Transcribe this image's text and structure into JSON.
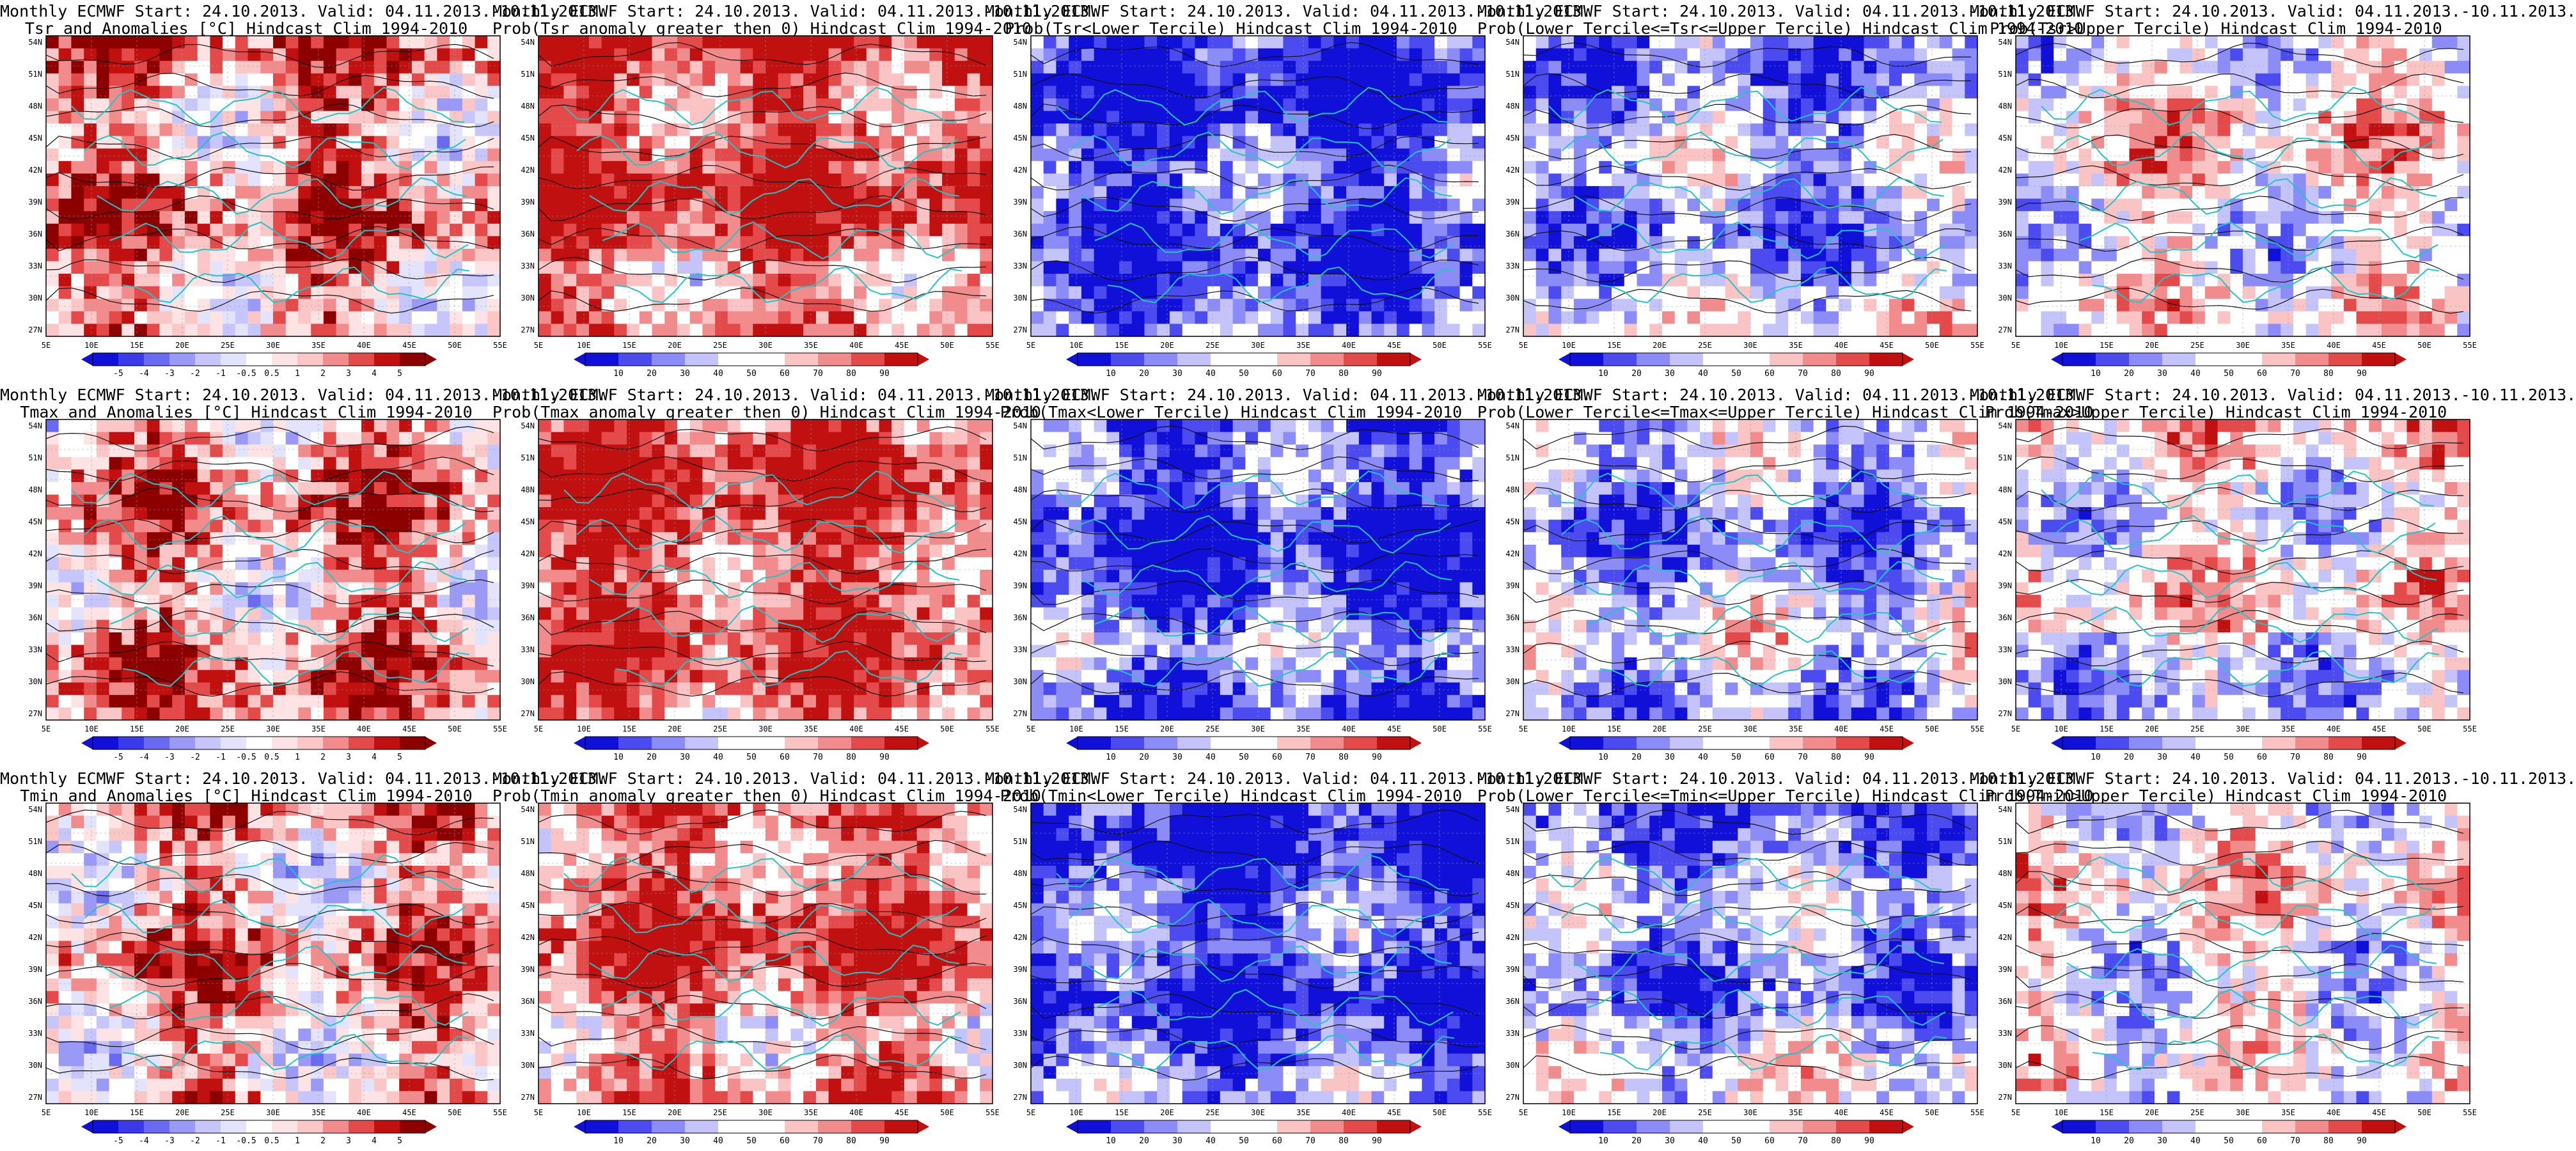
{
  "chart_data": [
    {
      "type": "heatmap",
      "title": "Monthly ECMWF Start: 24.10.2013. Valid: 04.11.2013.-10.11.2013.",
      "subtitle": "Tsr and Anomalies [°C] Hindcast Clim 1994-2010",
      "scheme": "anom",
      "tone": 0.45,
      "xticks": [
        "5E",
        "10E",
        "15E",
        "20E",
        "25E",
        "30E",
        "35E",
        "40E",
        "45E",
        "50E",
        "55E"
      ],
      "yticks": [
        "54N",
        "51N",
        "48N",
        "45N",
        "42N",
        "39N",
        "36N",
        "33N",
        "30N",
        "27N"
      ],
      "colorbar": [
        "-5",
        "-4",
        "-3",
        "-2",
        "-1",
        "-0.5",
        "0.5",
        "1",
        "2",
        "3",
        "4",
        "5"
      ]
    },
    {
      "type": "heatmap",
      "title": "Monthly ECMWF Start: 24.10.2013. Valid: 04.11.2013.-10.11.2013.",
      "subtitle": "Prob(Tsr anomaly greater then 0) Hindcast Clim 1994-2010",
      "scheme": "prob",
      "tone": 0.8,
      "xticks": [
        "5E",
        "10E",
        "15E",
        "20E",
        "25E",
        "30E",
        "35E",
        "40E",
        "45E",
        "50E",
        "55E"
      ],
      "yticks": [
        "54N",
        "51N",
        "48N",
        "45N",
        "42N",
        "39N",
        "36N",
        "33N",
        "30N",
        "27N"
      ],
      "colorbar": [
        "10",
        "20",
        "30",
        "40",
        "50",
        "60",
        "70",
        "80",
        "90"
      ]
    },
    {
      "type": "heatmap",
      "title": "Monthly ECMWF Start: 24.10.2013. Valid: 04.11.2013.-10.11.2013.",
      "subtitle": "Prob(Tsr<Lower Tercile) Hindcast Clim 1994-2010",
      "scheme": "prob",
      "tone": -0.85,
      "xticks": [
        "5E",
        "10E",
        "15E",
        "20E",
        "25E",
        "30E",
        "35E",
        "40E",
        "45E",
        "50E",
        "55E"
      ],
      "yticks": [
        "54N",
        "51N",
        "48N",
        "45N",
        "42N",
        "39N",
        "36N",
        "33N",
        "30N",
        "27N"
      ],
      "colorbar": [
        "10",
        "20",
        "30",
        "40",
        "50",
        "60",
        "70",
        "80",
        "90"
      ]
    },
    {
      "type": "heatmap",
      "title": "Monthly ECMWF Start: 24.10.2013. Valid: 04.11.2013.-10.11.2013.",
      "subtitle": "Prob(Lower Tercile<=Tsr<=Upper Tercile) Hindcast Clim 1994-2010",
      "scheme": "prob",
      "tone": -0.4,
      "xticks": [
        "5E",
        "10E",
        "15E",
        "20E",
        "25E",
        "30E",
        "35E",
        "40E",
        "45E",
        "50E",
        "55E"
      ],
      "yticks": [
        "54N",
        "51N",
        "48N",
        "45N",
        "42N",
        "39N",
        "36N",
        "33N",
        "30N",
        "27N"
      ],
      "colorbar": [
        "10",
        "20",
        "30",
        "40",
        "50",
        "60",
        "70",
        "80",
        "90"
      ]
    },
    {
      "type": "heatmap",
      "title": "Monthly ECMWF Start: 24.10.2013. Valid: 04.11.2013.-10.11.2013.",
      "subtitle": "Prob(Tsr>Upper Tercile) Hindcast Clim 1994-2010",
      "scheme": "prob",
      "tone": 0.1,
      "xticks": [
        "5E",
        "10E",
        "15E",
        "20E",
        "25E",
        "30E",
        "35E",
        "40E",
        "45E",
        "50E",
        "55E"
      ],
      "yticks": [
        "54N",
        "51N",
        "48N",
        "45N",
        "42N",
        "39N",
        "36N",
        "33N",
        "30N",
        "27N"
      ],
      "colorbar": [
        "10",
        "20",
        "30",
        "40",
        "50",
        "60",
        "70",
        "80",
        "90"
      ]
    },
    {
      "type": "heatmap",
      "title": "Monthly ECMWF Start: 24.10.2013. Valid: 04.11.2013.-10.11.2013.",
      "subtitle": "Tmax and Anomalies [°C] Hindcast Clim 1994-2010",
      "scheme": "anom",
      "tone": 0.4,
      "xticks": [
        "5E",
        "10E",
        "15E",
        "20E",
        "25E",
        "30E",
        "35E",
        "40E",
        "45E",
        "50E",
        "55E"
      ],
      "yticks": [
        "54N",
        "51N",
        "48N",
        "45N",
        "42N",
        "39N",
        "36N",
        "33N",
        "30N",
        "27N"
      ],
      "colorbar": [
        "-5",
        "-4",
        "-3",
        "-2",
        "-1",
        "-0.5",
        "0.5",
        "1",
        "2",
        "3",
        "4",
        "5"
      ]
    },
    {
      "type": "heatmap",
      "title": "Monthly ECMWF Start: 24.10.2013. Valid: 04.11.2013.-10.11.2013.",
      "subtitle": "Prob(Tmax anomaly greater then 0) Hindcast Clim 1994-2010",
      "scheme": "prob",
      "tone": 0.8,
      "xticks": [
        "5E",
        "10E",
        "15E",
        "20E",
        "25E",
        "30E",
        "35E",
        "40E",
        "45E",
        "50E",
        "55E"
      ],
      "yticks": [
        "54N",
        "51N",
        "48N",
        "45N",
        "42N",
        "39N",
        "36N",
        "33N",
        "30N",
        "27N"
      ],
      "colorbar": [
        "10",
        "20",
        "30",
        "40",
        "50",
        "60",
        "70",
        "80",
        "90"
      ]
    },
    {
      "type": "heatmap",
      "title": "Monthly ECMWF Start: 24.10.2013. Valid: 04.11.2013.-10.11.2013.",
      "subtitle": "Prob(Tmax<Lower Tercile) Hindcast Clim 1994-2010",
      "scheme": "prob",
      "tone": -0.8,
      "xticks": [
        "5E",
        "10E",
        "15E",
        "20E",
        "25E",
        "30E",
        "35E",
        "40E",
        "45E",
        "50E",
        "55E"
      ],
      "yticks": [
        "54N",
        "51N",
        "48N",
        "45N",
        "42N",
        "39N",
        "36N",
        "33N",
        "30N",
        "27N"
      ],
      "colorbar": [
        "10",
        "20",
        "30",
        "40",
        "50",
        "60",
        "70",
        "80",
        "90"
      ]
    },
    {
      "type": "heatmap",
      "title": "Monthly ECMWF Start: 24.10.2013. Valid: 04.11.2013.-10.11.2013.",
      "subtitle": "Prob(Lower Tercile<=Tmax<=Upper Tercile) Hindcast Clim 1994-2010",
      "scheme": "prob",
      "tone": -0.4,
      "xticks": [
        "5E",
        "10E",
        "15E",
        "20E",
        "25E",
        "30E",
        "35E",
        "40E",
        "45E",
        "50E",
        "55E"
      ],
      "yticks": [
        "54N",
        "51N",
        "48N",
        "45N",
        "42N",
        "39N",
        "36N",
        "33N",
        "30N",
        "27N"
      ],
      "colorbar": [
        "10",
        "20",
        "30",
        "40",
        "50",
        "60",
        "70",
        "80",
        "90"
      ]
    },
    {
      "type": "heatmap",
      "title": "Monthly ECMWF Start: 24.10.2013. Valid: 04.11.2013.-10.11.2013.",
      "subtitle": "Prob(Tmax>Upper Tercile) Hindcast Clim 1994-2010",
      "scheme": "prob",
      "tone": 0.05,
      "xticks": [
        "5E",
        "10E",
        "15E",
        "20E",
        "25E",
        "30E",
        "35E",
        "40E",
        "45E",
        "50E",
        "55E"
      ],
      "yticks": [
        "54N",
        "51N",
        "48N",
        "45N",
        "42N",
        "39N",
        "36N",
        "33N",
        "30N",
        "27N"
      ],
      "colorbar": [
        "10",
        "20",
        "30",
        "40",
        "50",
        "60",
        "70",
        "80",
        "90"
      ]
    },
    {
      "type": "heatmap",
      "title": "Monthly ECMWF Start: 24.10.2013. Valid: 04.11.2013.-10.11.2013.",
      "subtitle": "Tmin and Anomalies [°C] Hindcast Clim 1994-2010",
      "scheme": "anom",
      "tone": 0.35,
      "xticks": [
        "5E",
        "10E",
        "15E",
        "20E",
        "25E",
        "30E",
        "35E",
        "40E",
        "45E",
        "50E",
        "55E"
      ],
      "yticks": [
        "54N",
        "51N",
        "48N",
        "45N",
        "42N",
        "39N",
        "36N",
        "33N",
        "30N",
        "27N"
      ],
      "colorbar": [
        "-5",
        "-4",
        "-3",
        "-2",
        "-1",
        "-0.5",
        "0.5",
        "1",
        "2",
        "3",
        "4",
        "5"
      ]
    },
    {
      "type": "heatmap",
      "title": "Monthly ECMWF Start: 24.10.2013. Valid: 04.11.2013.-10.11.2013.",
      "subtitle": "Prob(Tmin anomaly greater then 0) Hindcast Clim 1994-2010",
      "scheme": "prob",
      "tone": 0.7,
      "xticks": [
        "5E",
        "10E",
        "15E",
        "20E",
        "25E",
        "30E",
        "35E",
        "40E",
        "45E",
        "50E",
        "55E"
      ],
      "yticks": [
        "54N",
        "51N",
        "48N",
        "45N",
        "42N",
        "39N",
        "36N",
        "33N",
        "30N",
        "27N"
      ],
      "colorbar": [
        "10",
        "20",
        "30",
        "40",
        "50",
        "60",
        "70",
        "80",
        "90"
      ]
    },
    {
      "type": "heatmap",
      "title": "Monthly ECMWF Start: 24.10.2013. Valid: 04.11.2013.-10.11.2013.",
      "subtitle": "Prob(Tmin<Lower Tercile) Hindcast Clim 1994-2010",
      "scheme": "prob",
      "tone": -0.8,
      "xticks": [
        "5E",
        "10E",
        "15E",
        "20E",
        "25E",
        "30E",
        "35E",
        "40E",
        "45E",
        "50E",
        "55E"
      ],
      "yticks": [
        "54N",
        "51N",
        "48N",
        "45N",
        "42N",
        "39N",
        "36N",
        "33N",
        "30N",
        "27N"
      ],
      "colorbar": [
        "10",
        "20",
        "30",
        "40",
        "50",
        "60",
        "70",
        "80",
        "90"
      ]
    },
    {
      "type": "heatmap",
      "title": "Monthly ECMWF Start: 24.10.2013. Valid: 04.11.2013.-10.11.2013.",
      "subtitle": "Prob(Lower Tercile<=Tmin<=Upper Tercile) Hindcast Clim 1994-2010",
      "scheme": "prob",
      "tone": -0.45,
      "xticks": [
        "5E",
        "10E",
        "15E",
        "20E",
        "25E",
        "30E",
        "35E",
        "40E",
        "45E",
        "50E",
        "55E"
      ],
      "yticks": [
        "54N",
        "51N",
        "48N",
        "45N",
        "42N",
        "39N",
        "36N",
        "33N",
        "30N",
        "27N"
      ],
      "colorbar": [
        "10",
        "20",
        "30",
        "40",
        "50",
        "60",
        "70",
        "80",
        "90"
      ]
    },
    {
      "type": "heatmap",
      "title": "Monthly ECMWF Start: 24.10.2013. Valid: 04.11.2013.-10.11.2013.",
      "subtitle": "Prob(Tmin>Upper Tercile) Hindcast Clim 1994-2010",
      "scheme": "prob",
      "tone": 0.05,
      "xticks": [
        "5E",
        "10E",
        "15E",
        "20E",
        "25E",
        "30E",
        "35E",
        "40E",
        "45E",
        "50E",
        "55E"
      ],
      "yticks": [
        "54N",
        "51N",
        "48N",
        "45N",
        "42N",
        "39N",
        "36N",
        "33N",
        "30N",
        "27N"
      ],
      "colorbar": [
        "10",
        "20",
        "30",
        "40",
        "50",
        "60",
        "70",
        "80",
        "90"
      ]
    }
  ],
  "colors": {
    "prob_scale": [
      "#1010d8",
      "#4b4bf0",
      "#8c8cf8",
      "#c4c4fb",
      "#ffffff",
      "#ffffff",
      "#fbc4c4",
      "#f28c8c",
      "#e44a4a",
      "#c01010"
    ],
    "anom_scale": [
      "#1010d8",
      "#3a3ae8",
      "#6a6af0",
      "#9a9af6",
      "#c6c6fa",
      "#e3e3fc",
      "#ffffff",
      "#fde3e3",
      "#fac6c6",
      "#f28c8c",
      "#e44a4a",
      "#c01010",
      "#8c0000"
    ],
    "contour": "#111111",
    "border": "#22c5c5",
    "grid": "#8f9ea6"
  }
}
